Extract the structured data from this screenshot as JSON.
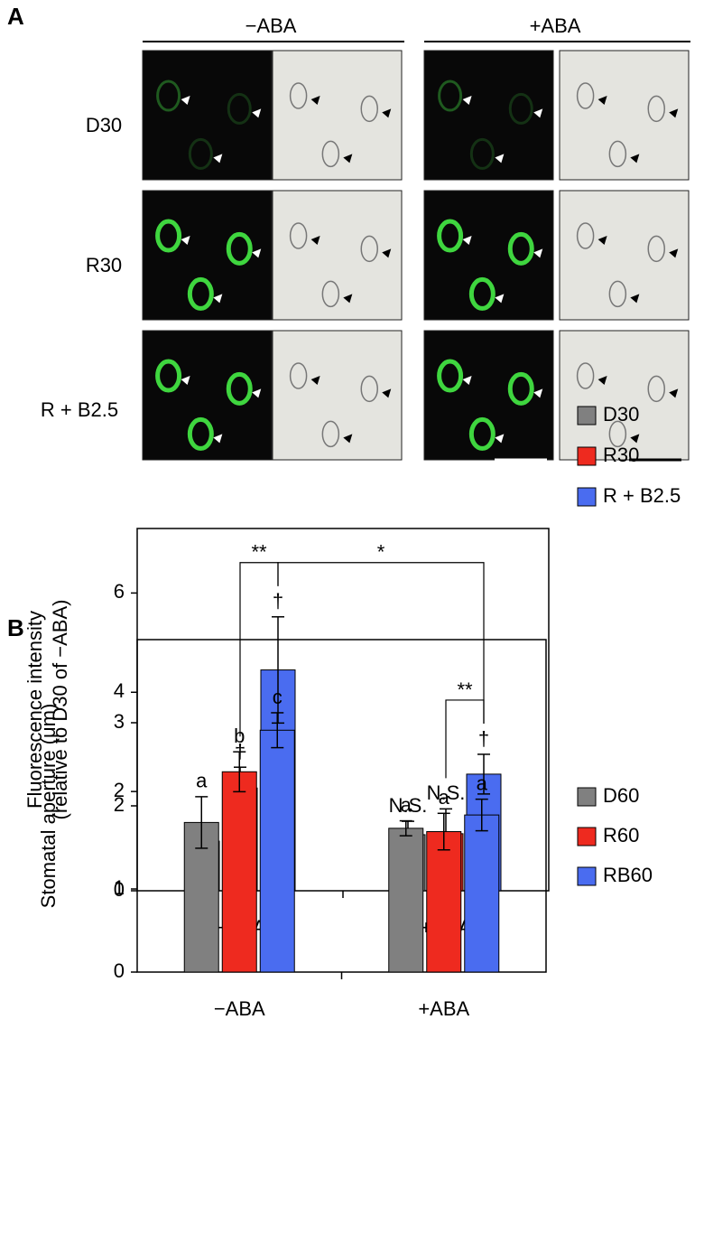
{
  "panel_a": {
    "label": "A",
    "conditions": [
      "−ABA",
      "+ABA"
    ],
    "rows": [
      "D30",
      "R30",
      "R + B2.5"
    ]
  },
  "panel_b": {
    "label": "B"
  },
  "chart_data": [
    {
      "type": "bar",
      "ylabel": [
        "Fluorescence intensity",
        "(relative to D30 of −ABA)"
      ],
      "categories": [
        "−ABA",
        "+ABA"
      ],
      "series": [
        {
          "name": "D30",
          "color": "#808080",
          "values": [
            1,
            1.13
          ],
          "errors": [
            null,
            0.27
          ],
          "labels": [
            null,
            "N.S."
          ]
        },
        {
          "name": "R30",
          "color": "#ee2a1f",
          "values": [
            2.07,
            1.15
          ],
          "errors": [
            0.42,
            0.5
          ],
          "labels": [
            "†",
            "N.S."
          ]
        },
        {
          "name": "R + B2.5",
          "color": "#4a6cf0",
          "values": [
            4.45,
            2.35
          ],
          "errors": [
            1.07,
            0.4
          ],
          "labels": [
            "†",
            "†"
          ]
        }
      ],
      "brackets": [
        {
          "label": "**",
          "from": [
            1,
            0
          ],
          "to": [
            2,
            0
          ]
        },
        {
          "label": "*",
          "from": [
            2,
            0
          ],
          "to": [
            2,
            1
          ]
        },
        {
          "label": "**",
          "from": [
            1,
            1
          ],
          "to": [
            2,
            1
          ]
        }
      ],
      "ylim": [
        0,
        7.3
      ],
      "yticks": [
        0,
        2,
        4,
        6
      ],
      "legend": "right"
    },
    {
      "type": "bar",
      "ylabel": [
        "Stomatal aperture (μm)"
      ],
      "categories": [
        "−ABA",
        "+ABA"
      ],
      "series": [
        {
          "name": "D60",
          "color": "#808080",
          "values": [
            1.8,
            1.73
          ],
          "errors": [
            0.31,
            0.09
          ],
          "labels": [
            "a",
            "a"
          ]
        },
        {
          "name": "R60",
          "color": "#ee2a1f",
          "values": [
            2.41,
            1.69
          ],
          "errors": [
            0.24,
            0.22
          ],
          "labels": [
            "b",
            "a"
          ]
        },
        {
          "name": "RB60",
          "color": "#4a6cf0",
          "values": [
            2.91,
            1.89
          ],
          "errors": [
            0.21,
            0.19
          ],
          "labels": [
            "c",
            "a"
          ]
        }
      ],
      "ylim": [
        0,
        4
      ],
      "yticks": [
        0,
        1,
        2,
        3
      ],
      "legend": "right"
    }
  ]
}
